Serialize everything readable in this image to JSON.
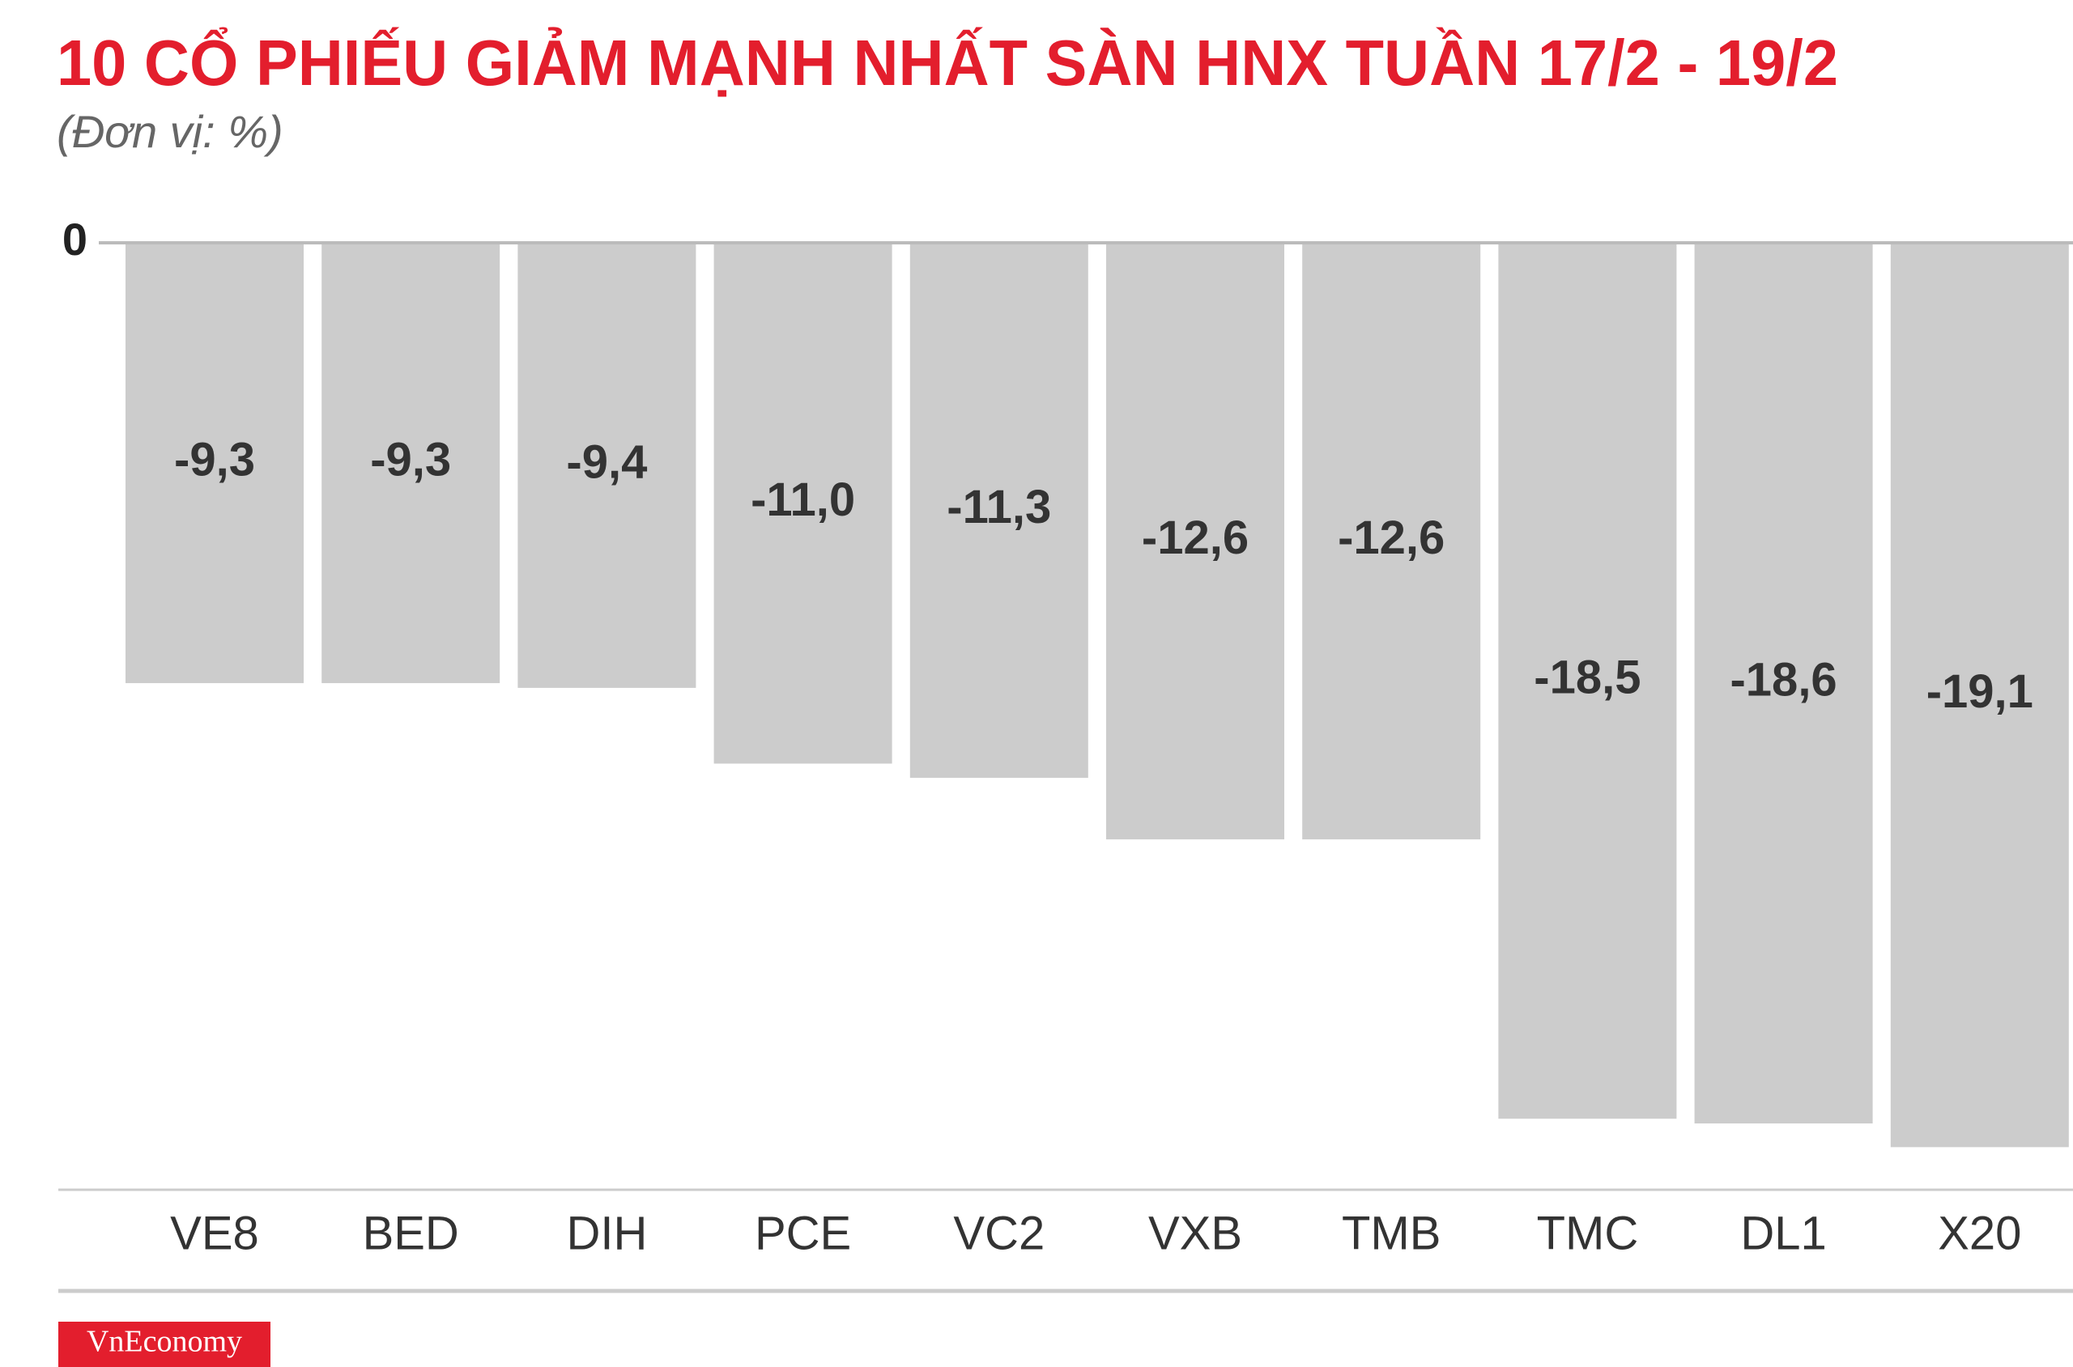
{
  "chart_data": {
    "type": "bar",
    "title": "10 CỔ PHIẾU GIẢM MẠNH NHẤT SÀN HNX TUẦN 17/2 - 19/2",
    "subtitle": "(Đơn vị: %)",
    "categories": [
      "VE8",
      "BED",
      "DIH",
      "PCE",
      "VC2",
      "VXB",
      "TMB",
      "TMC",
      "DL1",
      "X20"
    ],
    "values": [
      -9.3,
      -9.3,
      -9.4,
      -11.0,
      -11.3,
      -12.6,
      -12.6,
      -18.5,
      -18.6,
      -19.1
    ],
    "value_labels": [
      "-9,3",
      "-9,3",
      "-9,4",
      "-11,0",
      "-11,3",
      "-12,6",
      "-12,6",
      "-18,5",
      "-18,6",
      "-19,1"
    ],
    "color": "#cccccc",
    "ylim": [
      -20,
      0
    ],
    "yticks": [
      0
    ],
    "grid": false
  },
  "brand": "VnEconomy"
}
